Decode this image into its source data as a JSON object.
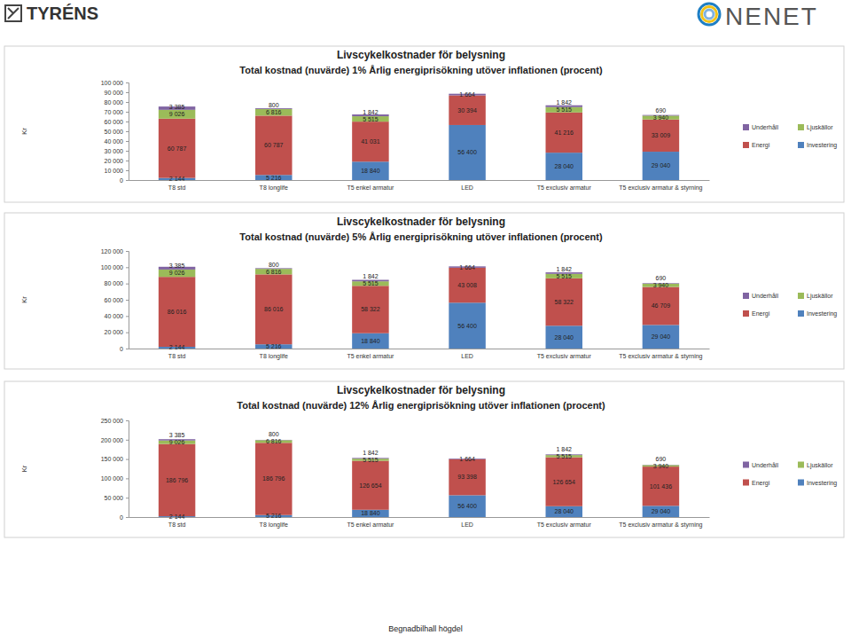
{
  "page": {
    "logos": [
      "TYRÉNS",
      "NENET"
    ],
    "footer": "Begnadbilhall högdel"
  },
  "chart_data": [
    {
      "type": "bar",
      "stacked": true,
      "data_labels": true,
      "legend": "right",
      "title": "Livscykelkostnader för belysning",
      "subtitle": "Total kostnad (nuvärde) 1% Årlig energiprisökning utöver inflationen (procent)",
      "y_label": "Kr",
      "categories": [
        "T8 std",
        "T8 longlife",
        "T5 enkel armatur",
        "LED",
        "T5 exclusiv armatur",
        "T5 exclusiv armatur & styrning"
      ],
      "ylim": [
        0,
        100000
      ],
      "yticks": [
        0,
        {
          "value": 10000,
          "label": "10 000"
        },
        {
          "value": 20000,
          "label": "20 000"
        },
        {
          "value": 30000,
          "label": "30 000"
        },
        {
          "value": 40000,
          "label": "40 000"
        },
        {
          "value": 50000,
          "label": "50 000"
        },
        {
          "value": 60000,
          "label": "60 000"
        },
        {
          "value": 70000,
          "label": "70 000"
        },
        {
          "value": 80000,
          "label": "80 000"
        },
        {
          "value": 90000,
          "label": "90 000"
        },
        {
          "value": 100000,
          "label": "100 000"
        }
      ],
      "series": [
        {
          "name": "Investering",
          "color": "#4f81bd",
          "values": [
            2144,
            5216,
            18840,
            56400,
            28040,
            29040
          ],
          "value_labels": [
            "2 144",
            "5 216",
            "18 840",
            "56 400",
            "28 040",
            "29 040"
          ]
        },
        {
          "name": "Energi",
          "color": "#c0504d",
          "values": [
            60787,
            60787,
            41031,
            30394,
            41216,
            33009
          ],
          "value_labels": [
            "60 787",
            "60 787",
            "41 031",
            "30 394",
            "41 216",
            "33 009"
          ]
        },
        {
          "name": "Ljuskällor",
          "color": "#9bbb59",
          "values": [
            9026,
            6816,
            5515,
            null,
            5515,
            3940
          ],
          "value_labels": [
            "9 026",
            "6 816",
            "5 515",
            null,
            "5 515",
            "3 940"
          ]
        },
        {
          "name": "Underhåll",
          "color": "#8064a2",
          "values": [
            3385,
            800,
            1842,
            1664,
            1842,
            690
          ],
          "value_labels": [
            "3 385",
            "800",
            "1 842",
            "1 664",
            "1 842",
            "690"
          ]
        }
      ]
    },
    {
      "type": "bar",
      "stacked": true,
      "data_labels": true,
      "legend": "right",
      "title": "Livscykelkostnader för belysning",
      "subtitle": "Total kostnad (nuvärde) 5% Årlig energiprisökning utöver inflationen (procent)",
      "y_label": "Kr",
      "categories": [
        "T8 std",
        "T8 longlife",
        "T5 enkel armatur",
        "LED",
        "T5 exclusiv armatur",
        "T5 exclusiv armatur & styrning"
      ],
      "ylim": [
        0,
        120000
      ],
      "yticks": [
        0,
        {
          "value": 20000,
          "label": "20 000"
        },
        {
          "value": 40000,
          "label": "40 000"
        },
        {
          "value": 60000,
          "label": "60 000"
        },
        {
          "value": 80000,
          "label": "80 000"
        },
        {
          "value": 100000,
          "label": "100 000"
        },
        {
          "value": 120000,
          "label": "120 000"
        }
      ],
      "series": [
        {
          "name": "Investering",
          "color": "#4f81bd",
          "values": [
            2144,
            5216,
            18840,
            56400,
            28040,
            29040
          ],
          "value_labels": [
            "2 144",
            "5 216",
            "18 840",
            "56 400",
            "28 040",
            "29 040"
          ]
        },
        {
          "name": "Energi",
          "color": "#c0504d",
          "values": [
            86016,
            86016,
            58322,
            43008,
            58322,
            46709
          ],
          "value_labels": [
            "86 016",
            "86 016",
            "58 322",
            "43 008",
            "58 322",
            "46 709"
          ]
        },
        {
          "name": "Ljuskällor",
          "color": "#9bbb59",
          "values": [
            9026,
            6816,
            5515,
            null,
            5515,
            3940
          ],
          "value_labels": [
            "9 026",
            "6 816",
            "5 515",
            null,
            "5 515",
            "3 940"
          ]
        },
        {
          "name": "Underhåll",
          "color": "#8064a2",
          "values": [
            3385,
            800,
            1842,
            1664,
            1842,
            690
          ],
          "value_labels": [
            "3 385",
            "800",
            "1 842",
            "1 664",
            "1 842",
            "690"
          ]
        }
      ]
    },
    {
      "type": "bar",
      "stacked": true,
      "data_labels": true,
      "legend": "right",
      "title": "Livscykelkostnader för belysning",
      "subtitle": "Total kostnad (nuvärde) 12% Årlig energiprisökning utöver inflationen (procent)",
      "y_label": "Kr",
      "categories": [
        "T8 std",
        "T8 longlife",
        "T5 enkel armatur",
        "LED",
        "T5 exclusiv armatur",
        "T5 exclusiv armatur & styrning"
      ],
      "ylim": [
        0,
        250000
      ],
      "yticks": [
        0,
        {
          "value": 50000,
          "label": "50 000"
        },
        {
          "value": 100000,
          "label": "100 000"
        },
        {
          "value": 150000,
          "label": "150 000"
        },
        {
          "value": 200000,
          "label": "200 000"
        },
        {
          "value": 250000,
          "label": "250 000"
        }
      ],
      "series": [
        {
          "name": "Investering",
          "color": "#4f81bd",
          "values": [
            2144,
            5216,
            18840,
            56400,
            28040,
            29040
          ],
          "value_labels": [
            "2 144",
            "5 216",
            "18 840",
            "56 400",
            "28 040",
            "29 040"
          ]
        },
        {
          "name": "Energi",
          "color": "#c0504d",
          "values": [
            186796,
            186796,
            126654,
            93398,
            126654,
            101436
          ],
          "value_labels": [
            "186 796",
            "186 796",
            "126 654",
            "93 398",
            "126 654",
            "101 436"
          ]
        },
        {
          "name": "Ljuskällor",
          "color": "#9bbb59",
          "values": [
            9026,
            6816,
            5515,
            null,
            5515,
            3940
          ],
          "value_labels": [
            "9 026",
            "6 816",
            "5 515",
            null,
            "5 515",
            "3 940"
          ]
        },
        {
          "name": "Underhåll",
          "color": "#8064a2",
          "values": [
            3385,
            800,
            1842,
            1664,
            1842,
            690
          ],
          "value_labels": [
            "3 385",
            "800",
            "1 842",
            "1 664",
            "1 842",
            "690"
          ]
        }
      ]
    }
  ]
}
